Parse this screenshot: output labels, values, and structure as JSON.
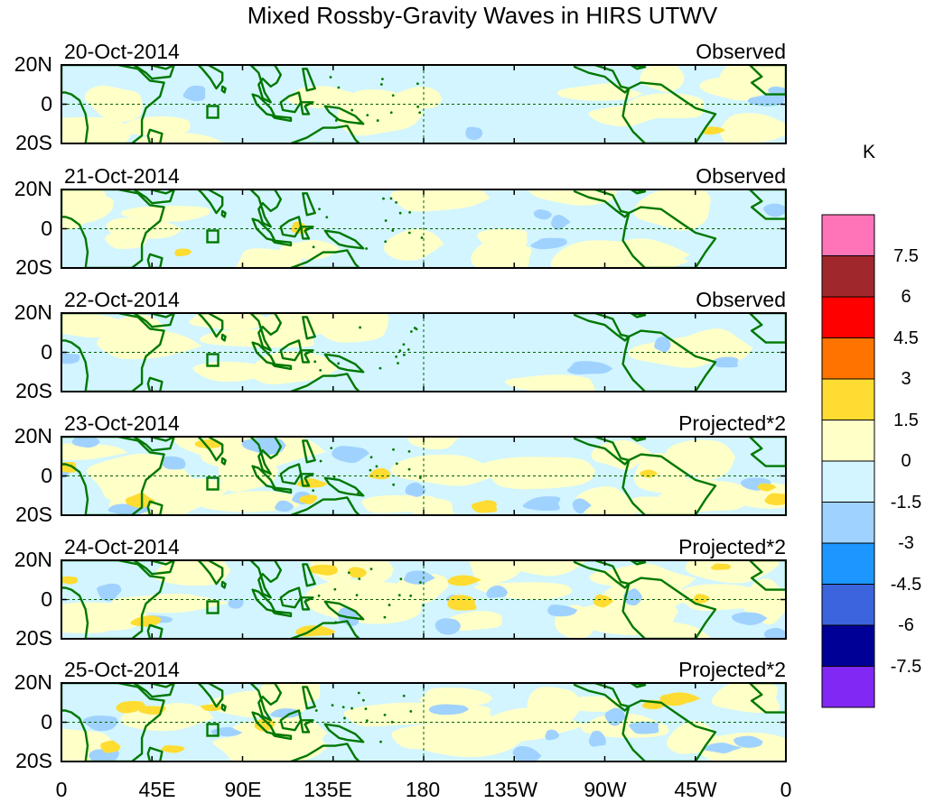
{
  "title": "Mixed Rossby-Gravity Waves in HIRS UTWV",
  "lat_ticks": [
    "20N",
    "0",
    "20S"
  ],
  "lon_ticks": [
    "0",
    "45E",
    "90E",
    "135E",
    "180",
    "135W",
    "90W",
    "45W",
    "0"
  ],
  "panels": [
    {
      "date": "20-Oct-2014",
      "tag": "Observed"
    },
    {
      "date": "21-Oct-2014",
      "tag": "Observed"
    },
    {
      "date": "22-Oct-2014",
      "tag": "Observed"
    },
    {
      "date": "23-Oct-2014",
      "tag": "Projected*2"
    },
    {
      "date": "24-Oct-2014",
      "tag": "Projected*2"
    },
    {
      "date": "25-Oct-2014",
      "tag": "Projected*2"
    }
  ],
  "colorbar": {
    "unit": "K",
    "labels": [
      "7.5",
      "6",
      "4.5",
      "3",
      "1.5",
      "0",
      "-1.5",
      "-3",
      "-4.5",
      "-6",
      "-7.5"
    ],
    "colors": [
      "#ff73b9",
      "#a0282d",
      "#ff0000",
      "#ff7300",
      "#ffdc32",
      "#ffffc8",
      "#d2f5ff",
      "#a0d2ff",
      "#1e96ff",
      "#3c64dc",
      "#000096",
      "#8228f5"
    ]
  },
  "colors": {
    "land": "#007800",
    "border": "#005000",
    "warm": "#ffffc8",
    "warm2": "#ffdc32",
    "cool": "#d2f5ff",
    "cool2": "#a0d2ff"
  }
}
